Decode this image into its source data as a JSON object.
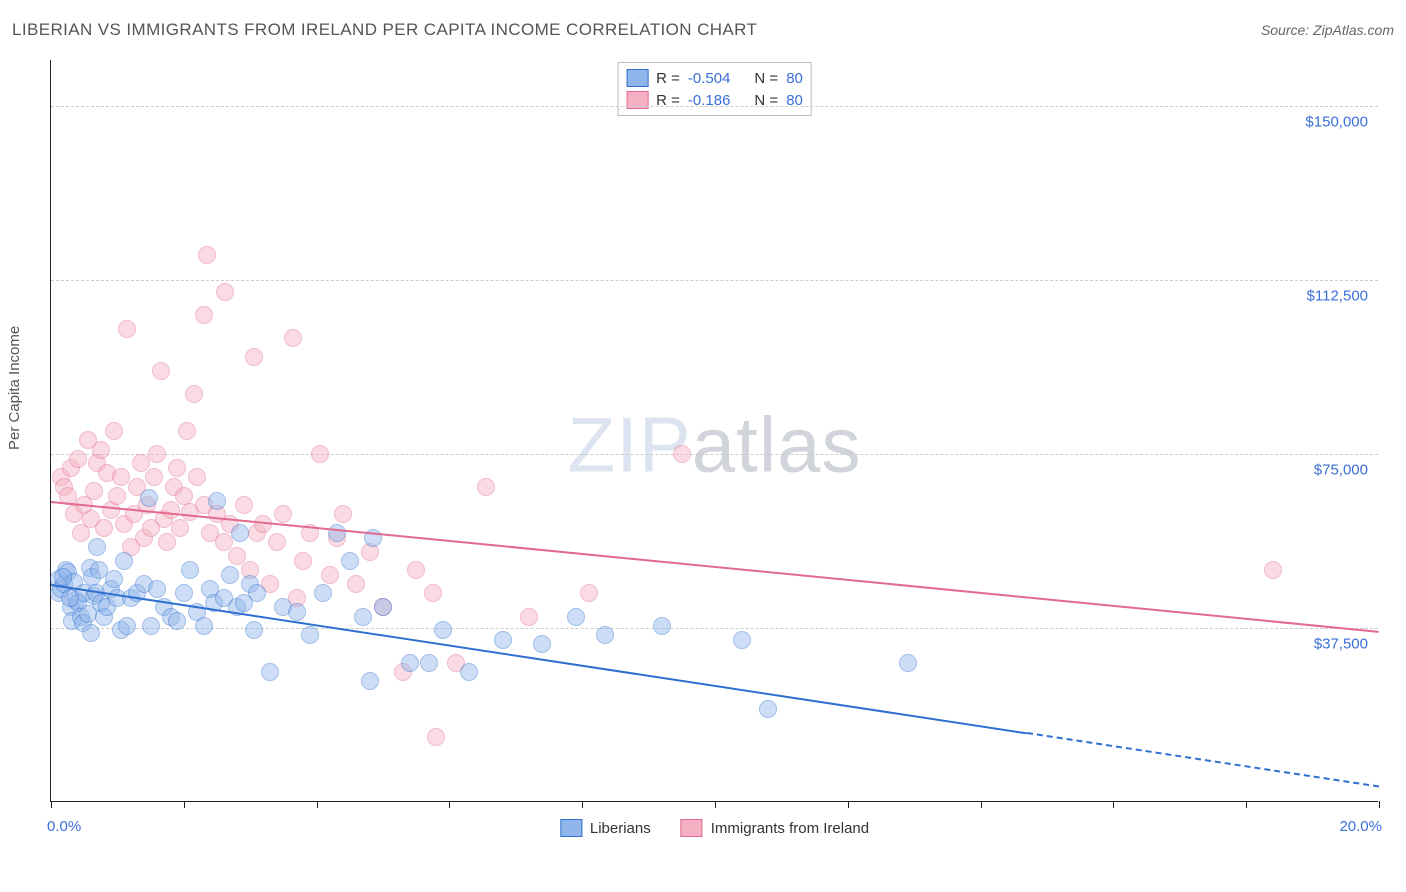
{
  "title": "LIBERIAN VS IMMIGRANTS FROM IRELAND PER CAPITA INCOME CORRELATION CHART",
  "source": "Source: ZipAtlas.com",
  "y_axis_label": "Per Capita Income",
  "watermark": {
    "bold": "ZIP",
    "thin": "atlas"
  },
  "chart": {
    "type": "scatter",
    "xlim": [
      0,
      20
    ],
    "ylim": [
      0,
      160000
    ],
    "x_tick_step": 2.0,
    "x_unit": "%",
    "xlim_labels": [
      "0.0%",
      "20.0%"
    ],
    "y_ticks": [
      37500,
      75000,
      112500,
      150000
    ],
    "y_tick_labels": [
      "$37,500",
      "$75,000",
      "$112,500",
      "$150,000"
    ],
    "grid_color": "#cccccc",
    "background_color": "#ffffff",
    "axis_color": "#222222",
    "tick_label_color": "#3b6fd8",
    "marker_radius": 9,
    "marker_opacity": 0.45,
    "series": [
      {
        "name": "Liberians",
        "fill": "#8fb5ea",
        "stroke": "#2f6fd0",
        "trend": {
          "x1": 0,
          "y1": 47000,
          "x2": 14.7,
          "y2": 15000,
          "extend_to_x": 20,
          "dash_after": true
        },
        "corr": {
          "R": "-0.504",
          "N": "80"
        },
        "points": [
          [
            0.12,
            48000
          ],
          [
            0.12,
            45000
          ],
          [
            0.15,
            46000
          ],
          [
            0.2,
            47000
          ],
          [
            0.22,
            50000
          ],
          [
            0.25,
            49500
          ],
          [
            0.3,
            42000
          ],
          [
            0.32,
            39000
          ],
          [
            0.35,
            47500
          ],
          [
            0.37,
            43500
          ],
          [
            0.4,
            43000
          ],
          [
            0.45,
            40000
          ],
          [
            0.48,
            38500
          ],
          [
            0.5,
            45000
          ],
          [
            0.55,
            40500
          ],
          [
            0.58,
            50500
          ],
          [
            0.6,
            36500
          ],
          [
            0.62,
            48500
          ],
          [
            0.65,
            44500
          ],
          [
            0.68,
            45000
          ],
          [
            0.7,
            55000
          ],
          [
            0.72,
            50000
          ],
          [
            0.75,
            43000
          ],
          [
            0.8,
            40000
          ],
          [
            0.85,
            42000
          ],
          [
            0.9,
            46000
          ],
          [
            0.95,
            48000
          ],
          [
            1.0,
            44000
          ],
          [
            1.05,
            37000
          ],
          [
            1.1,
            52000
          ],
          [
            1.15,
            38000
          ],
          [
            1.2,
            44000
          ],
          [
            1.3,
            45000
          ],
          [
            1.4,
            47000
          ],
          [
            1.48,
            65500
          ],
          [
            1.5,
            38000
          ],
          [
            1.6,
            46000
          ],
          [
            1.7,
            42000
          ],
          [
            1.8,
            40000
          ],
          [
            1.9,
            39000
          ],
          [
            2.0,
            45000
          ],
          [
            2.1,
            50000
          ],
          [
            2.2,
            41000
          ],
          [
            2.3,
            38000
          ],
          [
            2.4,
            46000
          ],
          [
            2.45,
            43000
          ],
          [
            2.5,
            65000
          ],
          [
            2.6,
            44000
          ],
          [
            2.7,
            49000
          ],
          [
            2.8,
            42000
          ],
          [
            2.85,
            58000
          ],
          [
            2.9,
            43000
          ],
          [
            3.0,
            47000
          ],
          [
            3.05,
            37000
          ],
          [
            3.1,
            45000
          ],
          [
            3.3,
            28000
          ],
          [
            3.5,
            42000
          ],
          [
            3.7,
            41000
          ],
          [
            3.9,
            36000
          ],
          [
            4.1,
            45000
          ],
          [
            4.3,
            58000
          ],
          [
            4.5,
            52000
          ],
          [
            4.7,
            40000
          ],
          [
            4.85,
            57000
          ],
          [
            5.0,
            42000
          ],
          [
            4.8,
            26000
          ],
          [
            5.4,
            30000
          ],
          [
            5.7,
            30000
          ],
          [
            5.9,
            37000
          ],
          [
            6.3,
            28000
          ],
          [
            6.8,
            35000
          ],
          [
            7.4,
            34000
          ],
          [
            7.9,
            40000
          ],
          [
            8.35,
            36000
          ],
          [
            9.2,
            38000
          ],
          [
            10.4,
            35000
          ],
          [
            10.8,
            20000
          ],
          [
            12.9,
            30000
          ],
          [
            0.18,
            48500
          ],
          [
            0.28,
            44000
          ]
        ]
      },
      {
        "name": "Immigants from Ireland",
        "legend_label": "Immigrants from Ireland",
        "fill": "#f4b1c3",
        "stroke": "#e26a8f",
        "trend": {
          "x1": 0,
          "y1": 65000,
          "x2": 20,
          "y2": 37000,
          "dash_after": false
        },
        "corr": {
          "R": "-0.186",
          "N": "80"
        },
        "points": [
          [
            0.15,
            70000
          ],
          [
            0.2,
            68000
          ],
          [
            0.25,
            66000
          ],
          [
            0.3,
            72000
          ],
          [
            0.35,
            62000
          ],
          [
            0.4,
            74000
          ],
          [
            0.45,
            58000
          ],
          [
            0.5,
            64000
          ],
          [
            0.55,
            78000
          ],
          [
            0.6,
            61000
          ],
          [
            0.65,
            67000
          ],
          [
            0.7,
            73000
          ],
          [
            0.75,
            76000
          ],
          [
            0.8,
            59000
          ],
          [
            0.85,
            71000
          ],
          [
            0.9,
            63000
          ],
          [
            0.95,
            80000
          ],
          [
            1.0,
            66000
          ],
          [
            1.05,
            70000
          ],
          [
            1.1,
            60000
          ],
          [
            1.15,
            102000
          ],
          [
            1.2,
            55000
          ],
          [
            1.25,
            62000
          ],
          [
            1.3,
            68000
          ],
          [
            1.35,
            73000
          ],
          [
            1.4,
            57000
          ],
          [
            1.45,
            64000
          ],
          [
            1.5,
            59000
          ],
          [
            1.55,
            70000
          ],
          [
            1.6,
            75000
          ],
          [
            1.65,
            93000
          ],
          [
            1.7,
            61000
          ],
          [
            1.75,
            56000
          ],
          [
            1.8,
            63000
          ],
          [
            1.85,
            68000
          ],
          [
            1.9,
            72000
          ],
          [
            1.95,
            59000
          ],
          [
            2.0,
            66000
          ],
          [
            2.05,
            80000
          ],
          [
            2.1,
            62500
          ],
          [
            2.15,
            88000
          ],
          [
            2.2,
            70000
          ],
          [
            2.3,
            64000
          ],
          [
            2.35,
            118000
          ],
          [
            2.4,
            58000
          ],
          [
            2.5,
            62000
          ],
          [
            2.3,
            105000
          ],
          [
            2.6,
            56000
          ],
          [
            2.7,
            60000
          ],
          [
            2.62,
            110000
          ],
          [
            2.8,
            53000
          ],
          [
            2.9,
            64000
          ],
          [
            3.0,
            50000
          ],
          [
            3.05,
            96000
          ],
          [
            3.1,
            58000
          ],
          [
            3.2,
            60000
          ],
          [
            3.3,
            47000
          ],
          [
            3.4,
            56000
          ],
          [
            3.5,
            62000
          ],
          [
            3.65,
            100000
          ],
          [
            3.7,
            44000
          ],
          [
            3.8,
            52000
          ],
          [
            3.9,
            58000
          ],
          [
            4.05,
            75000
          ],
          [
            4.2,
            49000
          ],
          [
            4.3,
            57000
          ],
          [
            4.4,
            62000
          ],
          [
            4.6,
            47000
          ],
          [
            4.8,
            54000
          ],
          [
            5.0,
            42000
          ],
          [
            5.3,
            28000
          ],
          [
            5.5,
            50000
          ],
          [
            5.75,
            45000
          ],
          [
            6.1,
            30000
          ],
          [
            6.55,
            68000
          ],
          [
            7.2,
            40000
          ],
          [
            8.1,
            45000
          ],
          [
            9.5,
            75000
          ],
          [
            5.8,
            14000
          ],
          [
            18.4,
            50000
          ]
        ]
      }
    ]
  },
  "corr_box": {
    "R_label": "R =",
    "N_label": "N ="
  }
}
